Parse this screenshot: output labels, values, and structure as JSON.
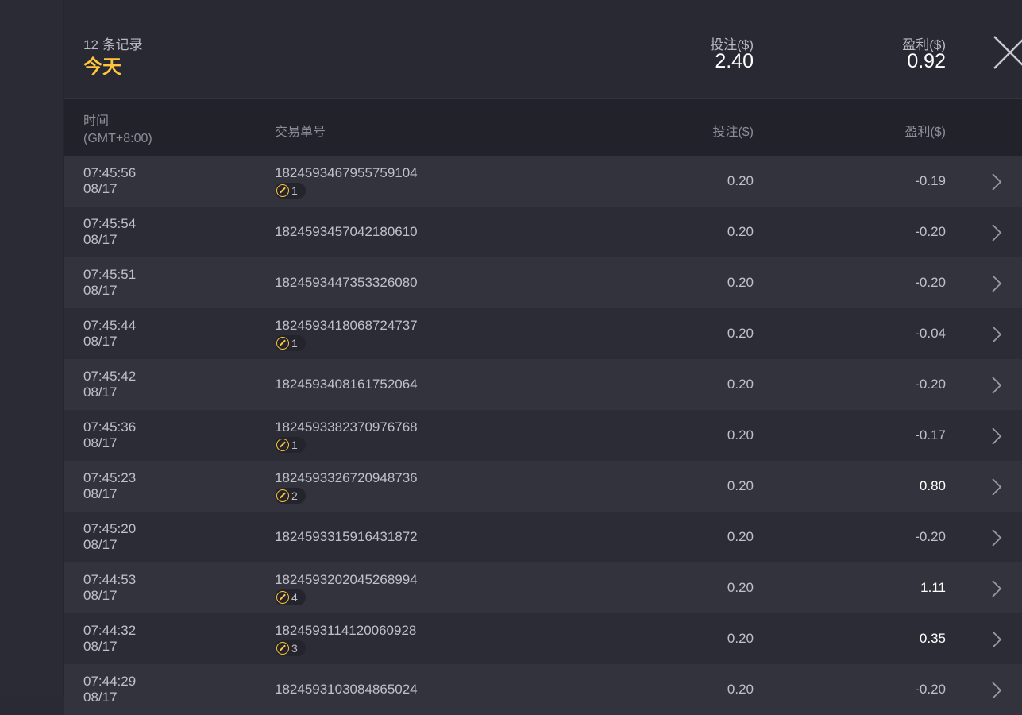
{
  "summary": {
    "count": "12 条记录",
    "period": "今天",
    "bet_label": "投注($)",
    "bet_total": "2.40",
    "profit_label": "盈利($)",
    "profit_total": "0.92"
  },
  "columns": {
    "time": "时间",
    "timezone": "(GMT+8:00)",
    "id": "交易单号",
    "bet": "投注($)",
    "profit": "盈利($)"
  },
  "accent": "#ffc53d",
  "rows": [
    {
      "time": "07:45:56",
      "date": "08/17",
      "id": "1824593467955759104",
      "badge": "1",
      "bet": "0.20",
      "profit": "-0.19"
    },
    {
      "time": "07:45:54",
      "date": "08/17",
      "id": "1824593457042180610",
      "badge": null,
      "bet": "0.20",
      "profit": "-0.20"
    },
    {
      "time": "07:45:51",
      "date": "08/17",
      "id": "1824593447353326080",
      "badge": null,
      "bet": "0.20",
      "profit": "-0.20"
    },
    {
      "time": "07:45:44",
      "date": "08/17",
      "id": "1824593418068724737",
      "badge": "1",
      "bet": "0.20",
      "profit": "-0.04"
    },
    {
      "time": "07:45:42",
      "date": "08/17",
      "id": "1824593408161752064",
      "badge": null,
      "bet": "0.20",
      "profit": "-0.20"
    },
    {
      "time": "07:45:36",
      "date": "08/17",
      "id": "1824593382370976768",
      "badge": "1",
      "bet": "0.20",
      "profit": "-0.17"
    },
    {
      "time": "07:45:23",
      "date": "08/17",
      "id": "1824593326720948736",
      "badge": "2",
      "bet": "0.20",
      "profit": "0.80"
    },
    {
      "time": "07:45:20",
      "date": "08/17",
      "id": "1824593315916431872",
      "badge": null,
      "bet": "0.20",
      "profit": "-0.20"
    },
    {
      "time": "07:44:53",
      "date": "08/17",
      "id": "1824593202045268994",
      "badge": "4",
      "bet": "0.20",
      "profit": "1.11"
    },
    {
      "time": "07:44:32",
      "date": "08/17",
      "id": "1824593114120060928",
      "badge": "3",
      "bet": "0.20",
      "profit": "0.35"
    },
    {
      "time": "07:44:29",
      "date": "08/17",
      "id": "1824593103084865024",
      "badge": null,
      "bet": "0.20",
      "profit": "-0.20"
    }
  ]
}
